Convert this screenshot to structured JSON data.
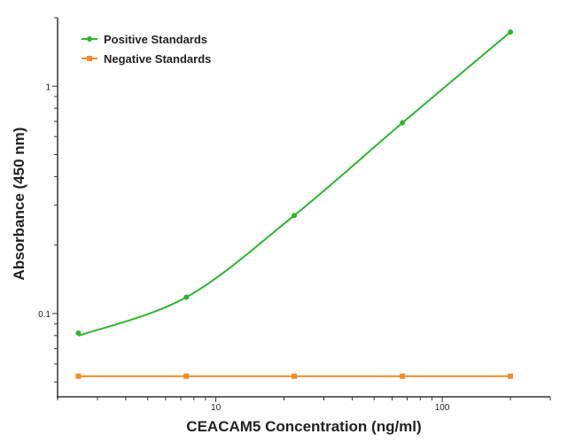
{
  "chart_data": {
    "type": "line",
    "title": "",
    "xlabel": "CEACAM5 Concentration (ng/ml)",
    "ylabel": "Absorbance (450 nm)",
    "xscale": "log",
    "yscale": "log",
    "xlim": [
      2,
      300
    ],
    "ylim": [
      0.043,
      2
    ],
    "x_ticks": [
      {
        "value": 10,
        "label": "10"
      },
      {
        "value": 100,
        "label": "100"
      }
    ],
    "y_ticks": [
      {
        "value": 0.1,
        "label": "0.1"
      },
      {
        "value": 1,
        "label": "1"
      }
    ],
    "grid": false,
    "legend_position": "top-left",
    "series": [
      {
        "name": "Positive Standards",
        "color": "#2db52d",
        "marker": "circle",
        "fit": "smooth curve",
        "x": [
          2.47,
          7.41,
          22.2,
          66.7,
          200
        ],
        "y": [
          0.082,
          0.118,
          0.27,
          0.69,
          1.73
        ]
      },
      {
        "name": "Negative Standards",
        "color": "#f28a2e",
        "marker": "square",
        "fit": "line",
        "x": [
          2.47,
          7.41,
          22.2,
          66.7,
          200
        ],
        "y": [
          0.053,
          0.053,
          0.053,
          0.053,
          0.053
        ]
      }
    ]
  }
}
